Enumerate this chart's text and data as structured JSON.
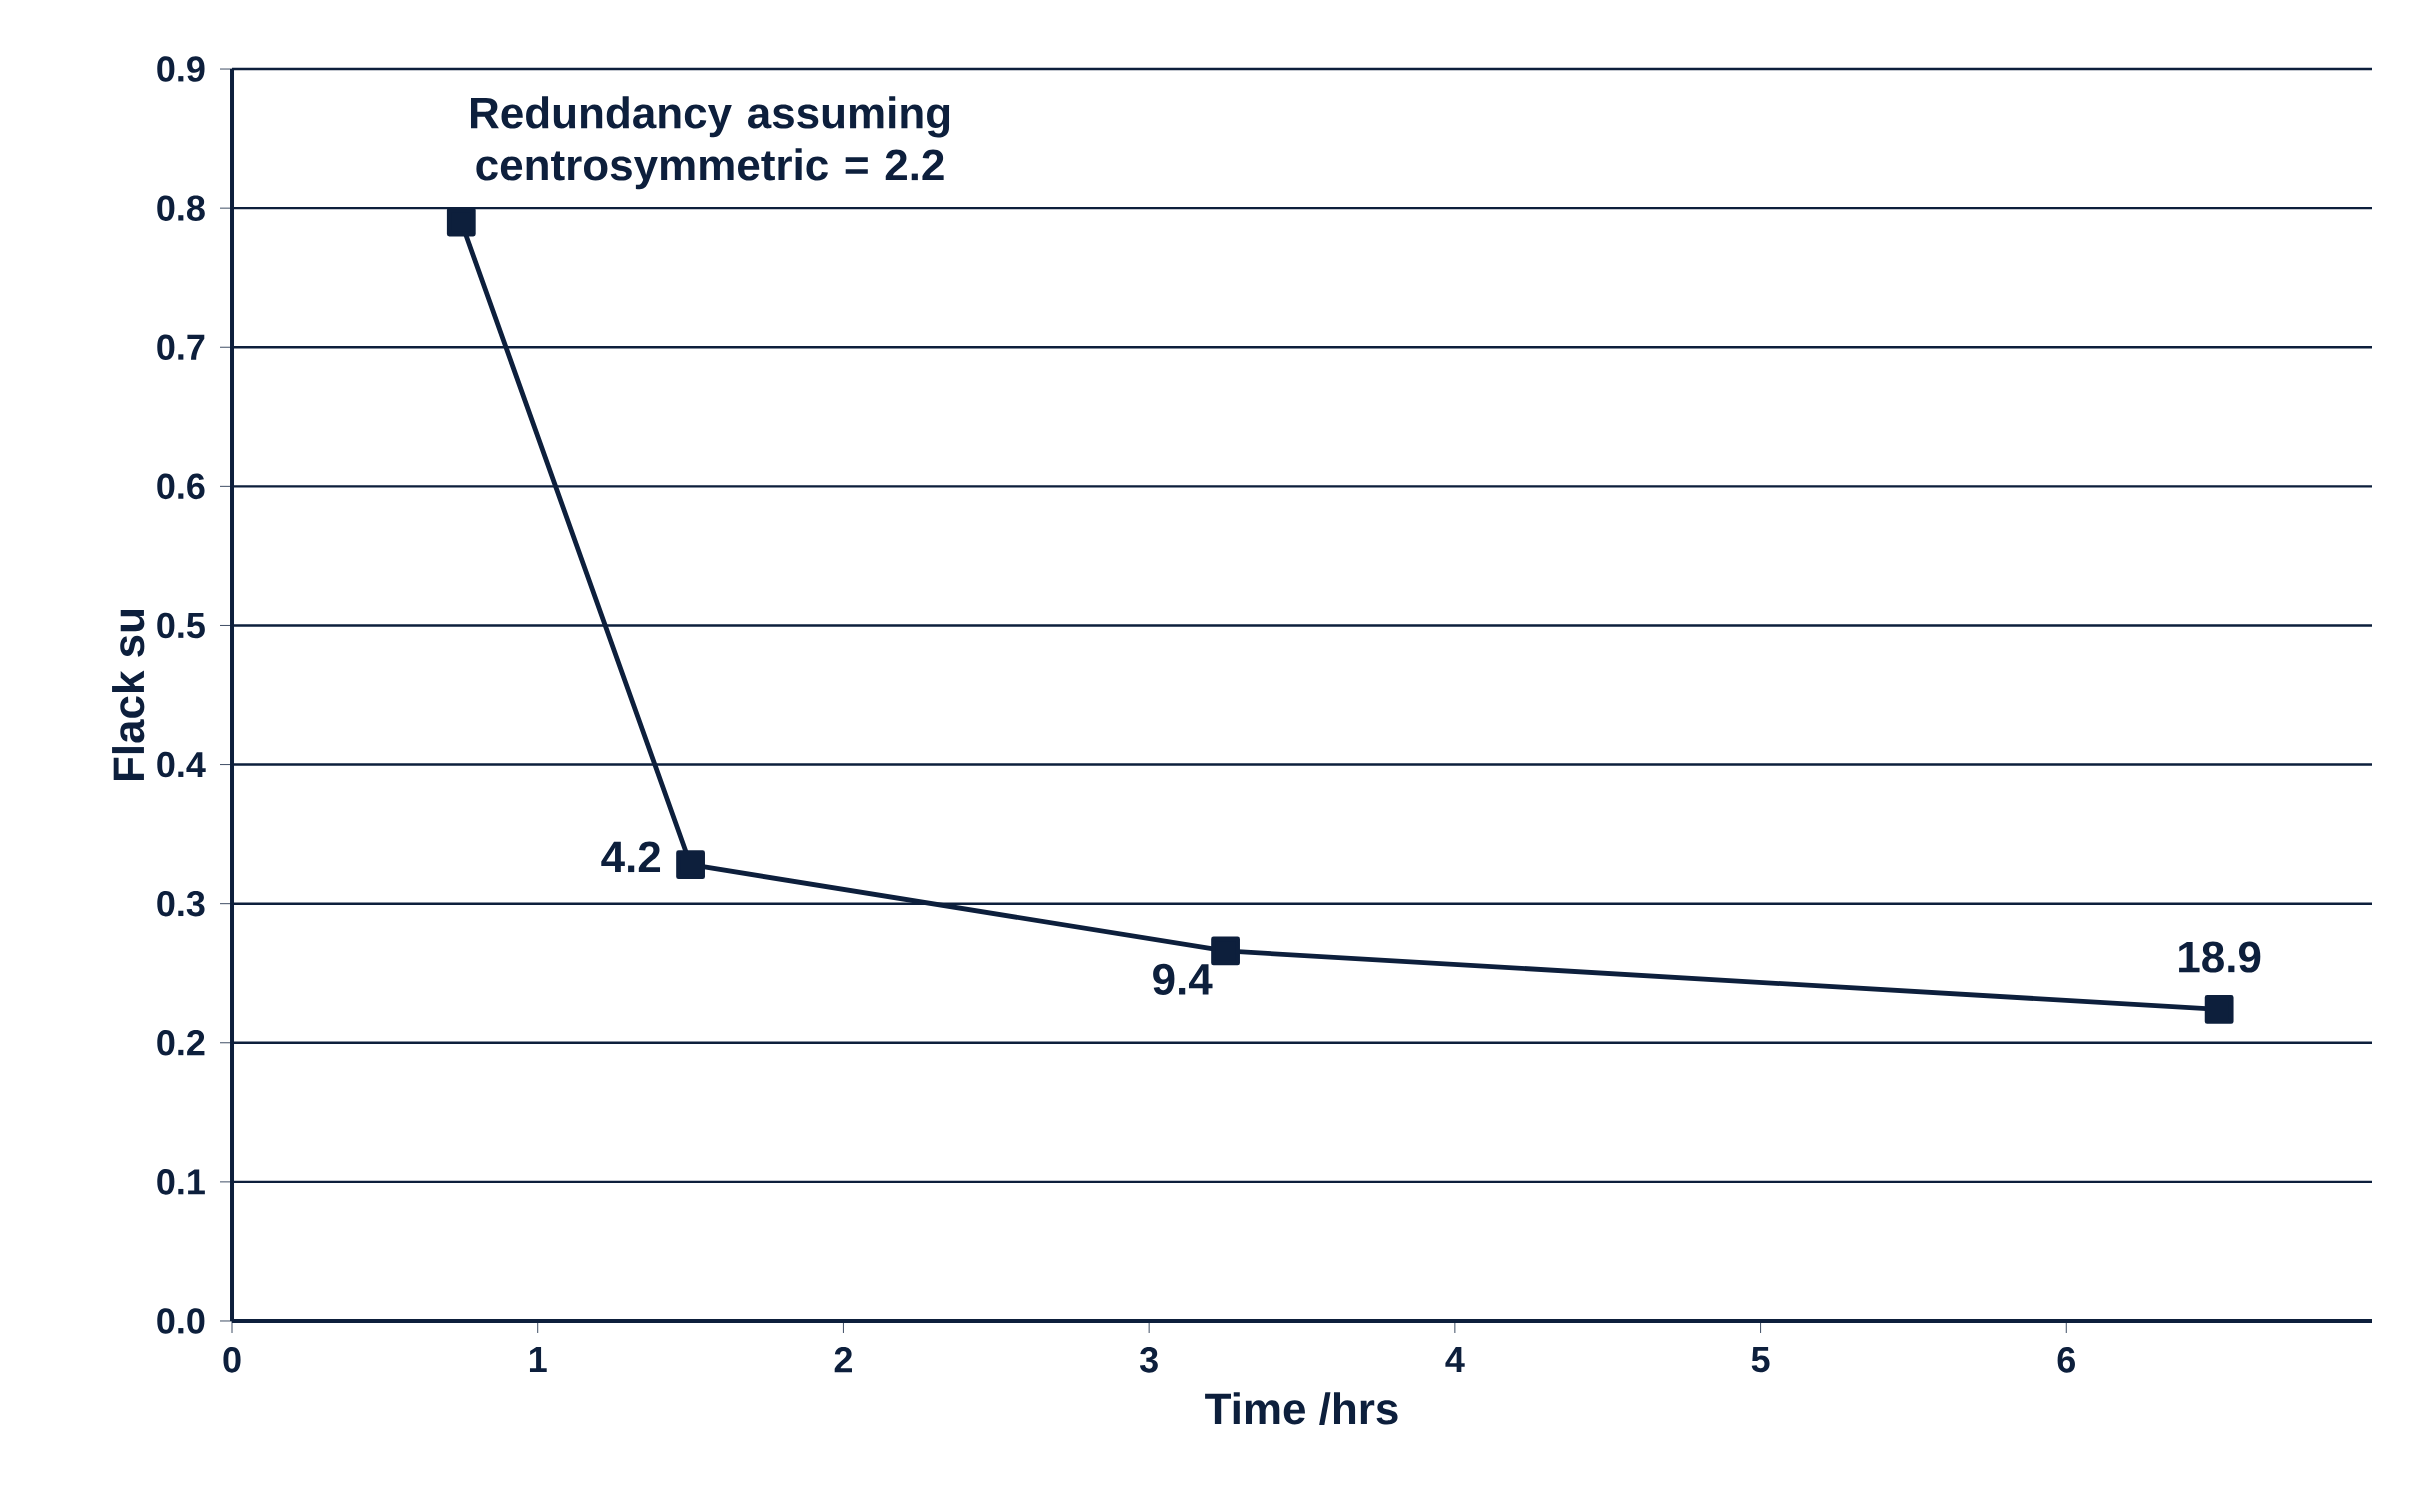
{
  "chart_data": {
    "type": "line",
    "xlabel": "Time /hrs",
    "ylabel": "Flack su",
    "x": [
      0.75,
      1.5,
      3.25,
      6.5
    ],
    "values": [
      0.79,
      0.328,
      0.266,
      0.224
    ],
    "color": "#0d1f3c",
    "marker": "square",
    "line_style": "solid",
    "xlim": [
      0,
      7
    ],
    "xticks": [
      0,
      1,
      2,
      3,
      4,
      5,
      6
    ],
    "ylim": [
      0,
      0.9
    ],
    "yticks": [
      {
        "value": 0,
        "label": "0.0"
      },
      0.1,
      0.2,
      0.3,
      0.4,
      0.5,
      0.6,
      0.7,
      0.8,
      0.9
    ],
    "grid": "y",
    "annotations": [
      {
        "text": "Redundancy assuming centrosymmetric = 2.2",
        "x": 0.75,
        "y": 0.79
      },
      {
        "text": "4.2",
        "x": 1.5,
        "y": 0.328
      },
      {
        "text": "9.4",
        "x": 3.25,
        "y": 0.266
      },
      {
        "text": "18.9",
        "x": 6.5,
        "y": 0.224
      }
    ]
  }
}
